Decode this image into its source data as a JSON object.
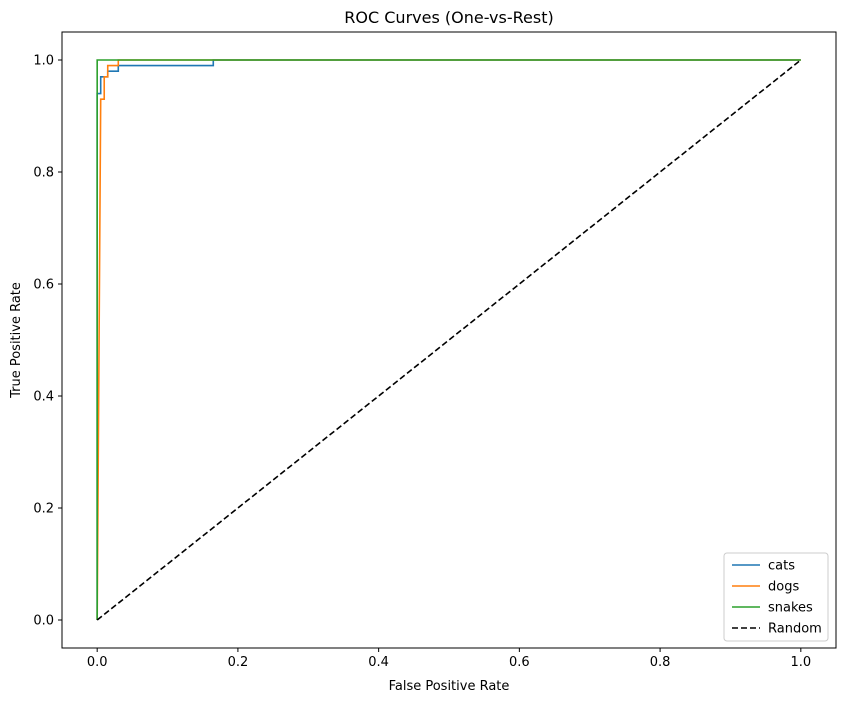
{
  "chart_data": {
    "type": "line",
    "title": "ROC Curves (One-vs-Rest)",
    "xlabel": "False Positive Rate",
    "ylabel": "True Positive Rate",
    "xlim": [
      -0.05,
      1.05
    ],
    "ylim": [
      -0.05,
      1.05
    ],
    "xticks": [
      0.0,
      0.2,
      0.4,
      0.6,
      0.8,
      1.0
    ],
    "xtick_labels": [
      "0.0",
      "0.2",
      "0.4",
      "0.6",
      "0.8",
      "1.0"
    ],
    "yticks": [
      0.0,
      0.2,
      0.4,
      0.6,
      0.8,
      1.0
    ],
    "ytick_labels": [
      "0.0",
      "0.2",
      "0.4",
      "0.6",
      "0.8",
      "1.0"
    ],
    "grid": false,
    "legend_position": "lower right",
    "series": [
      {
        "name": "cats",
        "color": "#1f77b4",
        "dashed": false,
        "x": [
          0.0,
          0.0,
          0.0,
          0.0,
          0.005,
          0.005,
          0.015,
          0.015,
          0.03,
          0.03,
          0.165,
          0.165,
          1.0
        ],
        "y": [
          0.0,
          0.9,
          0.94,
          0.94,
          0.94,
          0.97,
          0.97,
          0.98,
          0.98,
          0.99,
          0.99,
          1.0,
          1.0
        ]
      },
      {
        "name": "dogs",
        "color": "#ff7f0e",
        "dashed": false,
        "x": [
          0.0,
          0.0,
          0.005,
          0.005,
          0.01,
          0.01,
          0.015,
          0.015,
          0.03,
          0.03,
          1.0
        ],
        "y": [
          0.0,
          0.0,
          0.93,
          0.93,
          0.93,
          0.97,
          0.97,
          0.99,
          0.99,
          1.0,
          1.0
        ]
      },
      {
        "name": "snakes",
        "color": "#2ca02c",
        "dashed": false,
        "x": [
          0.0,
          0.0,
          1.0
        ],
        "y": [
          0.0,
          1.0,
          1.0
        ]
      },
      {
        "name": "Random",
        "color": "#000000",
        "dashed": true,
        "x": [
          0.0,
          1.0
        ],
        "y": [
          0.0,
          1.0
        ]
      }
    ]
  }
}
